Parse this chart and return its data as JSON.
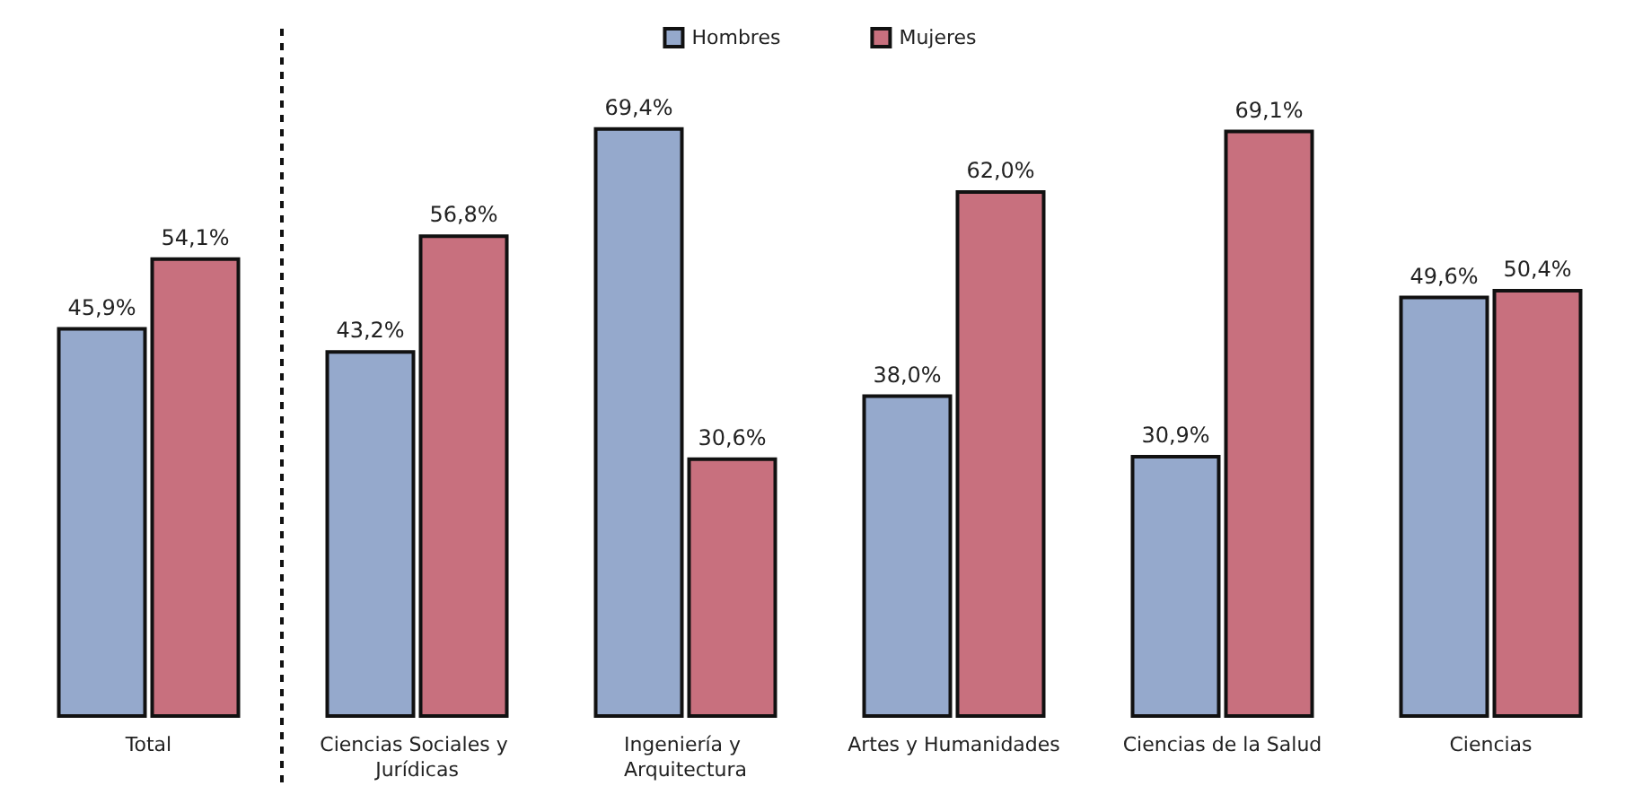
{
  "chart_data": {
    "type": "bar",
    "categories": [
      "Total",
      "Ciencias Sociales y Jurídicas",
      "Ingeniería y Arquitectura",
      "Artes y Humanidades",
      "Ciencias de la Salud",
      "Ciencias"
    ],
    "series": [
      {
        "name": "Hombres",
        "color": "#95a9cc",
        "values": [
          45.9,
          43.2,
          69.4,
          38.0,
          30.9,
          49.6
        ],
        "value_labels": [
          "45,9%",
          "43,2%",
          "69,4%",
          "38,0%",
          "30,9%",
          "49,6%"
        ]
      },
      {
        "name": "Mujeres",
        "color": "#c8707e",
        "values": [
          54.1,
          56.8,
          30.6,
          62.0,
          69.1,
          50.4
        ],
        "value_labels": [
          "54,1%",
          "56,8%",
          "30,6%",
          "62,0%",
          "69,1%",
          "50,4%"
        ]
      }
    ],
    "ylim": [
      0,
      70
    ],
    "legend": "top",
    "grid": false
  }
}
